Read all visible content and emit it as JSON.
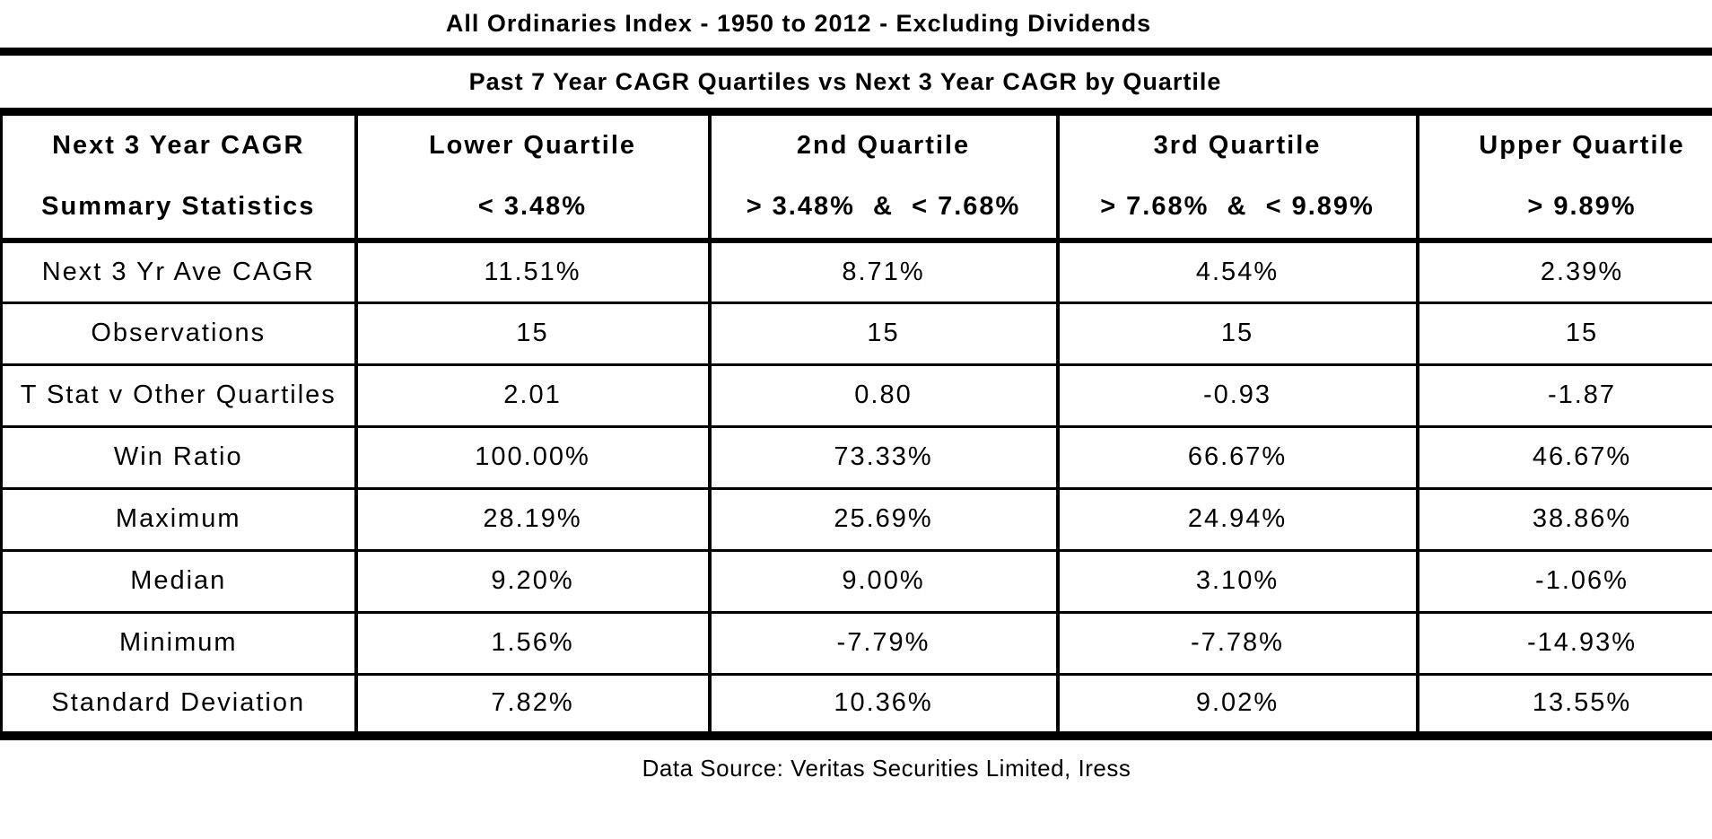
{
  "chart_data": {
    "type": "table",
    "title": "All Ordinaries Index - 1950 to 2012 - Excluding Dividends",
    "subtitle": "Past 7 Year CAGR Quartiles vs Next 3 Year CAGR by Quartile",
    "header": [
      {
        "line1": "Next 3 Year CAGR",
        "line2": "Summary Statistics"
      },
      {
        "line1": "Lower Quartile",
        "line2": "< 3.48%"
      },
      {
        "line1": "2nd Quartile",
        "line2": "> 3.48%  &  < 7.68%"
      },
      {
        "line1": "3rd Quartile",
        "line2": "> 7.68%  &  < 9.89%"
      },
      {
        "line1": "Upper Quartile",
        "line2": "> 9.89%"
      }
    ],
    "rows": [
      {
        "label": "Next 3 Yr Ave CAGR",
        "values": [
          "11.51%",
          "8.71%",
          "4.54%",
          "2.39%"
        ]
      },
      {
        "label": "Observations",
        "values": [
          "15",
          "15",
          "15",
          "15"
        ]
      },
      {
        "label": "T Stat v Other Quartiles",
        "values": [
          "2.01",
          "0.80",
          "-0.93",
          "-1.87"
        ]
      },
      {
        "label": "Win Ratio",
        "values": [
          "100.00%",
          "73.33%",
          "66.67%",
          "46.67%"
        ]
      },
      {
        "label": "Maximum",
        "values": [
          "28.19%",
          "25.69%",
          "24.94%",
          "38.86%"
        ]
      },
      {
        "label": "Median",
        "values": [
          "9.20%",
          "9.00%",
          "3.10%",
          "-1.06%"
        ]
      },
      {
        "label": "Minimum",
        "values": [
          "1.56%",
          "-7.79%",
          "-7.78%",
          "-14.93%"
        ]
      },
      {
        "label": "Standard Deviation",
        "values": [
          "7.82%",
          "10.36%",
          "9.02%",
          "13.55%"
        ]
      }
    ],
    "source_note": "Data Source: Veritas Securities Limited, Iress"
  },
  "colors": {
    "border": "#000000",
    "text": "#000000",
    "background": "#ffffff"
  }
}
